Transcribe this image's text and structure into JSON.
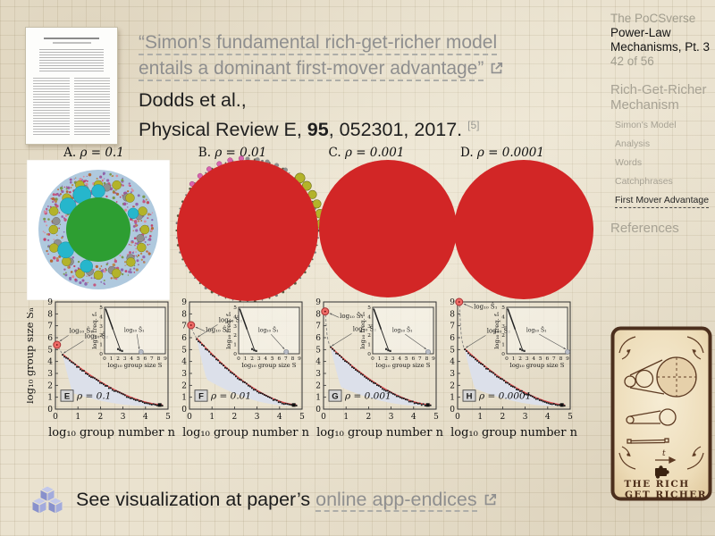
{
  "slide": {
    "quote": {
      "line1": "“Simon’s fundamental rich-get-richer model",
      "line2": "entails a dominant first-mover advantage”"
    },
    "citation": {
      "authors": "Dodds et al.,",
      "journal_pre": "Physical Review E, ",
      "volume": "95",
      "rest": ", 052301, 2017.",
      "ref_marker": "[5]"
    },
    "footer": {
      "prefix": "See visualization at paper’s ",
      "link": "online app-endices"
    }
  },
  "sidebar": {
    "series": "The PoCSverse",
    "deck_title": "Power-Law Mechanisms, Pt. 3",
    "page": "42 of 56",
    "section": "Rich-Get-Richer Mechanism",
    "items": [
      {
        "label": "Simon's Model",
        "active": false
      },
      {
        "label": "Analysis",
        "active": false
      },
      {
        "label": "Words",
        "active": false
      },
      {
        "label": "Catchphrases",
        "active": false
      },
      {
        "label": "First Mover Advantage",
        "active": true
      }
    ],
    "references": "References"
  },
  "packings": {
    "panels": [
      {
        "letter": "A.",
        "rho": "ρ = 0.1"
      },
      {
        "letter": "B.",
        "rho": "ρ = 0.01"
      },
      {
        "letter": "C.",
        "rho": "ρ = 0.001"
      },
      {
        "letter": "D.",
        "rho": "ρ = 0.0001"
      }
    ],
    "colors": {
      "dominant_red": "#d22626",
      "center_green": "#2d9e32",
      "cyan": "#26b6cc",
      "olive": "#b3b32a",
      "halo_blue": "#afc9de"
    }
  },
  "rich_card": {
    "line1": "THE RICH",
    "line2": "GET RICHER",
    "time_label": "t"
  },
  "chart_data": [
    {
      "type": "scatter",
      "panel": "E",
      "rho": "ρ = 0.1",
      "xlabel": "log₁₀ group number n",
      "ylabel": "log₁₀ group size Sₙ",
      "xlim": [
        0,
        5
      ],
      "ylim": [
        0,
        9
      ],
      "s1": 5.4,
      "s2": 4.55,
      "curve_end_x": 4.75,
      "ann_s1": "log₁₀ Ŝ₁",
      "ann_s2": "log₁₀ Ŝ₂",
      "inset": {
        "xlabel": "log₁₀ group size S",
        "ylabel": "log₁₀ freq. fₛ",
        "xlim": [
          0,
          9
        ],
        "ylim": [
          0,
          5
        ],
        "line": [
          [
            0.15,
            4.85
          ],
          [
            2.35,
            0.4
          ]
        ],
        "dot_x": 5.4,
        "ann": "log₁₀ Ŝ₁"
      }
    },
    {
      "type": "scatter",
      "panel": "F",
      "rho": "ρ = 0.01",
      "xlabel": "log₁₀ group number n",
      "ylabel": "log₁₀ group size Sₙ",
      "xlim": [
        0,
        5
      ],
      "ylim": [
        0,
        9
      ],
      "s1": 7.05,
      "s2": 5.9,
      "curve_end_x": 4.75,
      "ann_s1": "log₁₀ Ŝ₁",
      "ann_s2": "log₁₀ Ŝ₂",
      "inset": {
        "xlabel": "log₁₀ group size S",
        "ylabel": "log₁₀ freq. fₛ",
        "xlim": [
          0,
          9
        ],
        "ylim": [
          0,
          5
        ],
        "line": [
          [
            0.15,
            4.85
          ],
          [
            2.35,
            0.4
          ]
        ],
        "dot_x": 7.05,
        "ann": "log₁₀ Ŝ₁"
      }
    },
    {
      "type": "scatter",
      "panel": "G",
      "rho": "ρ = 0.001",
      "xlabel": "log₁₀ group number n",
      "ylabel": "log₁₀ group size Sₙ",
      "xlim": [
        0,
        5
      ],
      "ylim": [
        0,
        9
      ],
      "s1": 8.2,
      "s2": 5.15,
      "curve_end_x": 4.75,
      "ann_s1": "log₁₀ Ŝ₁",
      "ann_s2": "log₁₀ Ŝ₂",
      "inset": {
        "xlabel": "log₁₀ group size S",
        "ylabel": "log₁₀ freq. fₛ",
        "xlim": [
          0,
          9
        ],
        "ylim": [
          0,
          5
        ],
        "line": [
          [
            0.15,
            4.85
          ],
          [
            2.35,
            0.4
          ]
        ],
        "dot_x": 8.2,
        "ann": "log₁₀ Ŝ₁"
      }
    },
    {
      "type": "scatter",
      "panel": "H",
      "rho": "ρ = 0.0001",
      "xlabel": "log₁₀ group number n",
      "ylabel": "log₁₀ group size Sₙ",
      "xlim": [
        0,
        5
      ],
      "ylim": [
        0,
        9
      ],
      "s1": 9.0,
      "s2": 5.0,
      "curve_end_x": 4.75,
      "ann_s1": "log₁₀ Ŝ₁",
      "ann_s2": "log₁₀ Ŝ₂",
      "inset": {
        "xlabel": "log₁₀ group size S",
        "ylabel": "log₁₀ freq. fₛ",
        "xlim": [
          0,
          9
        ],
        "ylim": [
          0,
          5
        ],
        "line": [
          [
            0.15,
            4.85
          ],
          [
            2.35,
            0.4
          ]
        ],
        "dot_x": 9.0,
        "ann": "log₁₀ Ŝ₁"
      }
    }
  ]
}
